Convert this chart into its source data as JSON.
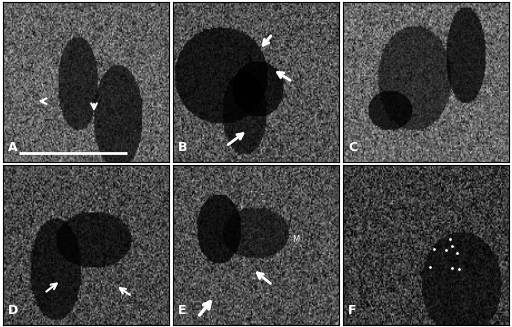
{
  "figure_width": 5.12,
  "figure_height": 3.27,
  "dpi": 100,
  "background_color": "#ffffff",
  "border_color": "#000000",
  "panel_labels": [
    "A",
    "B",
    "C",
    "D",
    "E",
    "F"
  ],
  "label_color": "#ffffff",
  "label_fontsize": 9,
  "grid_rows": 2,
  "grid_cols": 3,
  "seeds": [
    10,
    20,
    30,
    40,
    50,
    60
  ],
  "dark_factors": [
    0.38,
    0.32,
    0.4,
    0.28,
    0.3,
    0.22
  ],
  "blob_counts": [
    2,
    3,
    3,
    2,
    2,
    1
  ]
}
